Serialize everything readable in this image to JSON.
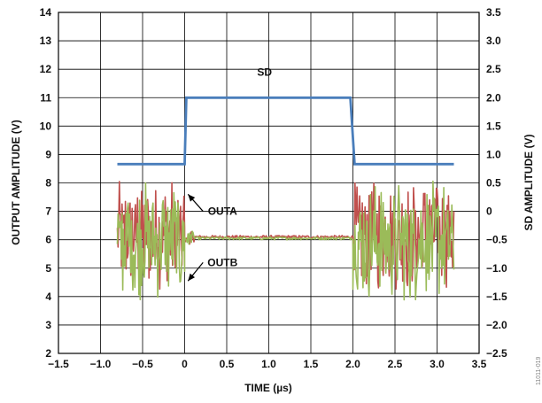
{
  "chart_data": {
    "type": "line",
    "title": "",
    "xlabel": "TIME (µs)",
    "ylabel_left": "OUTPUT AMPLITUDE (V)",
    "ylabel_right": "SD AMPLITUDE (V)",
    "xlim": [
      -1.5,
      3.5
    ],
    "ylim_left": [
      2,
      14
    ],
    "ylim_right": [
      -2.5,
      3.5
    ],
    "grid": true,
    "x_ticks": [
      "−1.5",
      "−1.0",
      "−0.5",
      "0",
      "0.5",
      "1.0",
      "1.5",
      "2.0",
      "2.5",
      "3.0",
      "3.5"
    ],
    "y_ticks_left": [
      "2",
      "3",
      "4",
      "5",
      "6",
      "7",
      "8",
      "9",
      "10",
      "11",
      "12",
      "13",
      "14"
    ],
    "y_ticks_right": [
      "−2.5",
      "−2.0",
      "−1.5",
      "−1.0",
      "−0.5",
      "0",
      "0.5",
      "1.0",
      "1.5",
      "2.0",
      "2.5",
      "3.0",
      "3.5"
    ],
    "series": [
      {
        "name": "SD",
        "axis": "right",
        "color": "#4a7ebb",
        "x": [
          -0.8,
          0.0,
          0.02,
          1.97,
          2.02,
          3.2
        ],
        "y": [
          0.83,
          0.83,
          2.0,
          2.0,
          0.83,
          0.83
        ]
      },
      {
        "name": "OUTA",
        "axis": "left",
        "color": "#c0504d",
        "active_segments": [
          [
            -0.8,
            0.0
          ],
          [
            2.0,
            3.2
          ]
        ],
        "quiet_level": 6.1,
        "quiet_range": [
          0.0,
          2.0
        ],
        "amplitude_range": [
          4.2,
          8.2
        ]
      },
      {
        "name": "OUTB",
        "axis": "left",
        "color": "#9bbb59",
        "active_segments": [
          [
            -0.8,
            0.0
          ],
          [
            2.0,
            3.2
          ]
        ],
        "quiet_level": 6.05,
        "quiet_range": [
          0.0,
          2.0
        ],
        "amplitude_range": [
          3.8,
          8.1
        ]
      }
    ],
    "annotations": [
      {
        "text": "SD",
        "x": 0.95,
        "y": 11.9,
        "axis": "left"
      },
      {
        "text": "OUTA",
        "x": 0.45,
        "y": 7.0,
        "axis": "left",
        "arrow_to": [
          0.04,
          7.6
        ]
      },
      {
        "text": "OUTB",
        "x": 0.45,
        "y": 5.2,
        "axis": "left",
        "arrow_to": [
          0.04,
          4.55
        ]
      }
    ]
  },
  "figure_code": "11011-019"
}
